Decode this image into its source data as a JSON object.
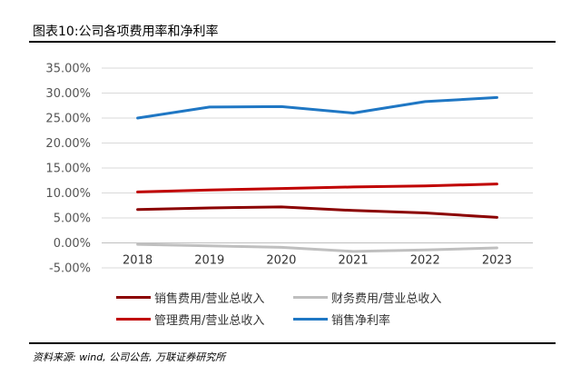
{
  "figure": {
    "title": "图表10:公司各项费用率和净利率",
    "source": "资料来源: wind, 公司公告, 万联证券研究所"
  },
  "chart_data": {
    "type": "line",
    "title": "",
    "xlabel": "",
    "ylabel": "",
    "x": [
      "2018",
      "2019",
      "2020",
      "2021",
      "2022",
      "2023"
    ],
    "ylim": [
      -5,
      35
    ],
    "yticks": [
      "-5.00%",
      "0.00%",
      "5.00%",
      "10.00%",
      "15.00%",
      "20.00%",
      "25.00%",
      "30.00%",
      "35.00%"
    ],
    "grid": true,
    "legend_position": "bottom",
    "series": [
      {
        "name": "销售费用/营业总收入",
        "color": "#8B0000",
        "values": [
          6.7,
          7.0,
          7.2,
          6.5,
          6.0,
          5.1
        ]
      },
      {
        "name": "财务费用/营业总收入",
        "color": "#BFBFBF",
        "values": [
          -0.3,
          -0.6,
          -0.9,
          -1.7,
          -1.4,
          -1.0
        ]
      },
      {
        "name": "管理费用/营业总收入",
        "color": "#C00000",
        "values": [
          10.2,
          10.6,
          10.9,
          11.2,
          11.4,
          11.8
        ]
      },
      {
        "name": "销售净利率",
        "color": "#1F77C4",
        "values": [
          25.0,
          27.2,
          27.3,
          26.0,
          28.3,
          29.1
        ]
      }
    ]
  }
}
